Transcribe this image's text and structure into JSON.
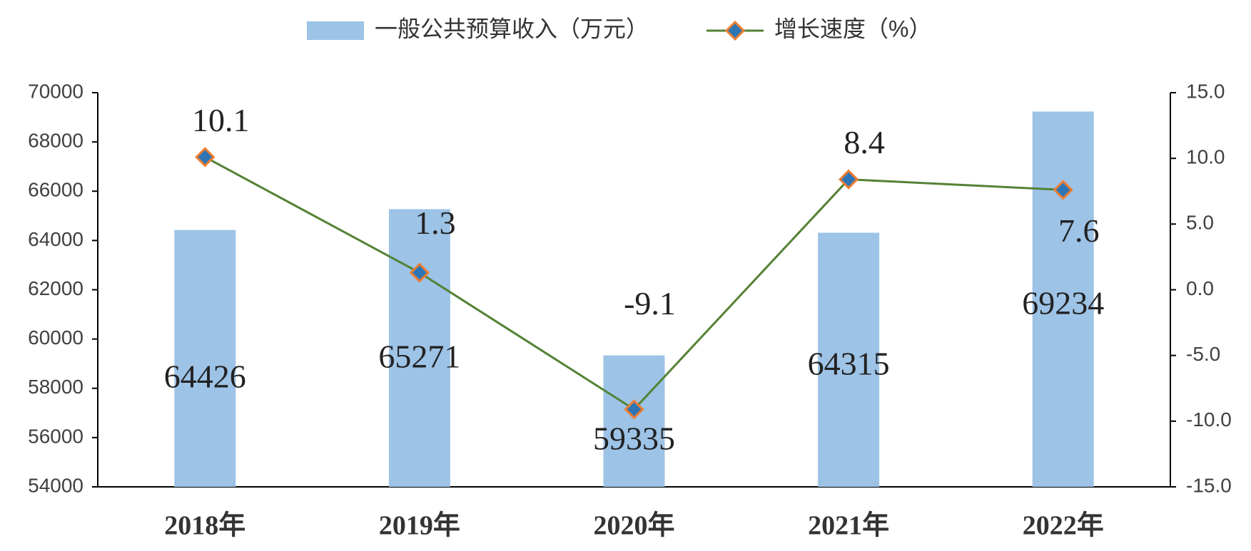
{
  "chart_data": {
    "type": "bar",
    "categories": [
      "2018年",
      "2019年",
      "2020年",
      "2021年",
      "2022年"
    ],
    "series": [
      {
        "name": "一般公共预算收入（万元）",
        "type": "bar",
        "color": "#9dc3e6",
        "values": [
          64426,
          65271,
          59335,
          64315,
          69234
        ]
      },
      {
        "name": "增长速度（%）",
        "type": "line",
        "axis": "y2",
        "color": "#548235",
        "marker_color": "#2e75b6",
        "marker_edge_color": "#ed7d31",
        "values": [
          10.1,
          1.3,
          -9.1,
          8.4,
          7.6
        ]
      }
    ],
    "ylim": [
      54000,
      70000
    ],
    "yticks": [
      54000,
      56000,
      58000,
      60000,
      62000,
      64000,
      66000,
      68000,
      70000
    ],
    "y2lim": [
      -15,
      15
    ],
    "y2ticks": [
      {
        "value": -15,
        "label": "-15.0"
      },
      {
        "value": -10,
        "label": "-10.0"
      },
      {
        "value": -5,
        "label": "-5.0"
      },
      {
        "value": 0,
        "label": "0.0"
      },
      {
        "value": 5,
        "label": "5.0"
      },
      {
        "value": 10,
        "label": "10.0"
      },
      {
        "value": 15,
        "label": "15.0"
      }
    ],
    "grid": false,
    "legend": "top"
  }
}
